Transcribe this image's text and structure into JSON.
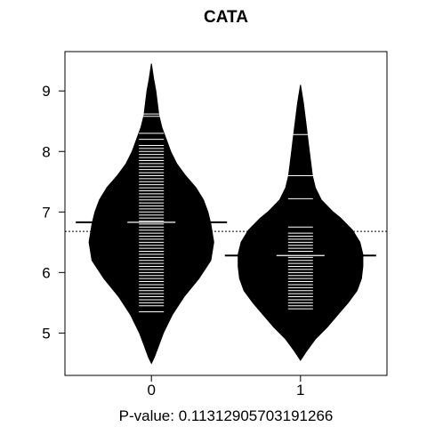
{
  "chart_data": {
    "type": "beanplot",
    "title": "CATA",
    "xlabel": "P-value: 0.11312905703191266",
    "ylabel": "",
    "categories": [
      "0",
      "1"
    ],
    "y_ticks": [
      5,
      6,
      7,
      8,
      9
    ],
    "ylim": [
      4.3,
      9.65
    ],
    "xlim": [
      -0.58,
      1.58
    ],
    "overall_mean": 6.68,
    "overall_mean_style": "dotted",
    "grid": false,
    "legend": "none",
    "beans": [
      {
        "category": "0",
        "mean": 6.83,
        "density_y": [
          4.5,
          4.6,
          4.8,
          5.0,
          5.3,
          5.6,
          5.9,
          6.2,
          6.5,
          6.8,
          7.0,
          7.2,
          7.4,
          7.6,
          7.8,
          8.0,
          8.2,
          8.4,
          8.6,
          8.8,
          9.0,
          9.2,
          9.45
        ],
        "density_width": [
          0.0,
          0.02,
          0.05,
          0.08,
          0.14,
          0.22,
          0.32,
          0.4,
          0.42,
          0.4,
          0.38,
          0.35,
          0.3,
          0.23,
          0.17,
          0.13,
          0.1,
          0.07,
          0.05,
          0.04,
          0.03,
          0.015,
          0.0
        ],
        "observations": [
          5.35,
          5.45,
          5.5,
          5.55,
          5.6,
          5.65,
          5.7,
          5.75,
          5.8,
          5.85,
          5.9,
          5.95,
          6.0,
          6.05,
          6.1,
          6.15,
          6.2,
          6.25,
          6.3,
          6.35,
          6.4,
          6.45,
          6.5,
          6.55,
          6.6,
          6.65,
          6.7,
          6.75,
          6.8,
          6.85,
          6.9,
          6.95,
          7.0,
          7.05,
          7.1,
          7.15,
          7.2,
          7.25,
          7.3,
          7.35,
          7.4,
          7.45,
          7.5,
          7.55,
          7.6,
          7.65,
          7.7,
          7.75,
          7.8,
          7.85,
          7.9,
          7.95,
          8.0,
          8.05,
          8.1,
          8.2,
          8.3,
          8.58,
          8.62
        ]
      },
      {
        "category": "1",
        "mean": 6.28,
        "density_y": [
          4.55,
          4.7,
          4.9,
          5.1,
          5.3,
          5.5,
          5.7,
          5.9,
          6.1,
          6.3,
          6.5,
          6.7,
          6.9,
          7.0,
          7.2,
          7.4,
          7.6,
          7.8,
          8.0,
          8.2,
          8.4,
          8.6,
          8.8,
          9.1
        ],
        "density_width": [
          0.0,
          0.04,
          0.1,
          0.18,
          0.25,
          0.32,
          0.38,
          0.41,
          0.42,
          0.42,
          0.4,
          0.35,
          0.27,
          0.22,
          0.14,
          0.1,
          0.08,
          0.07,
          0.06,
          0.05,
          0.04,
          0.03,
          0.02,
          0.0
        ],
        "observations": [
          5.4,
          5.45,
          5.5,
          5.55,
          5.6,
          5.65,
          5.7,
          5.75,
          5.8,
          5.85,
          5.9,
          5.95,
          6.0,
          6.05,
          6.1,
          6.15,
          6.2,
          6.25,
          6.35,
          6.4,
          6.45,
          6.5,
          6.55,
          6.6,
          6.65,
          6.75,
          7.22,
          7.6,
          8.28
        ]
      }
    ]
  }
}
